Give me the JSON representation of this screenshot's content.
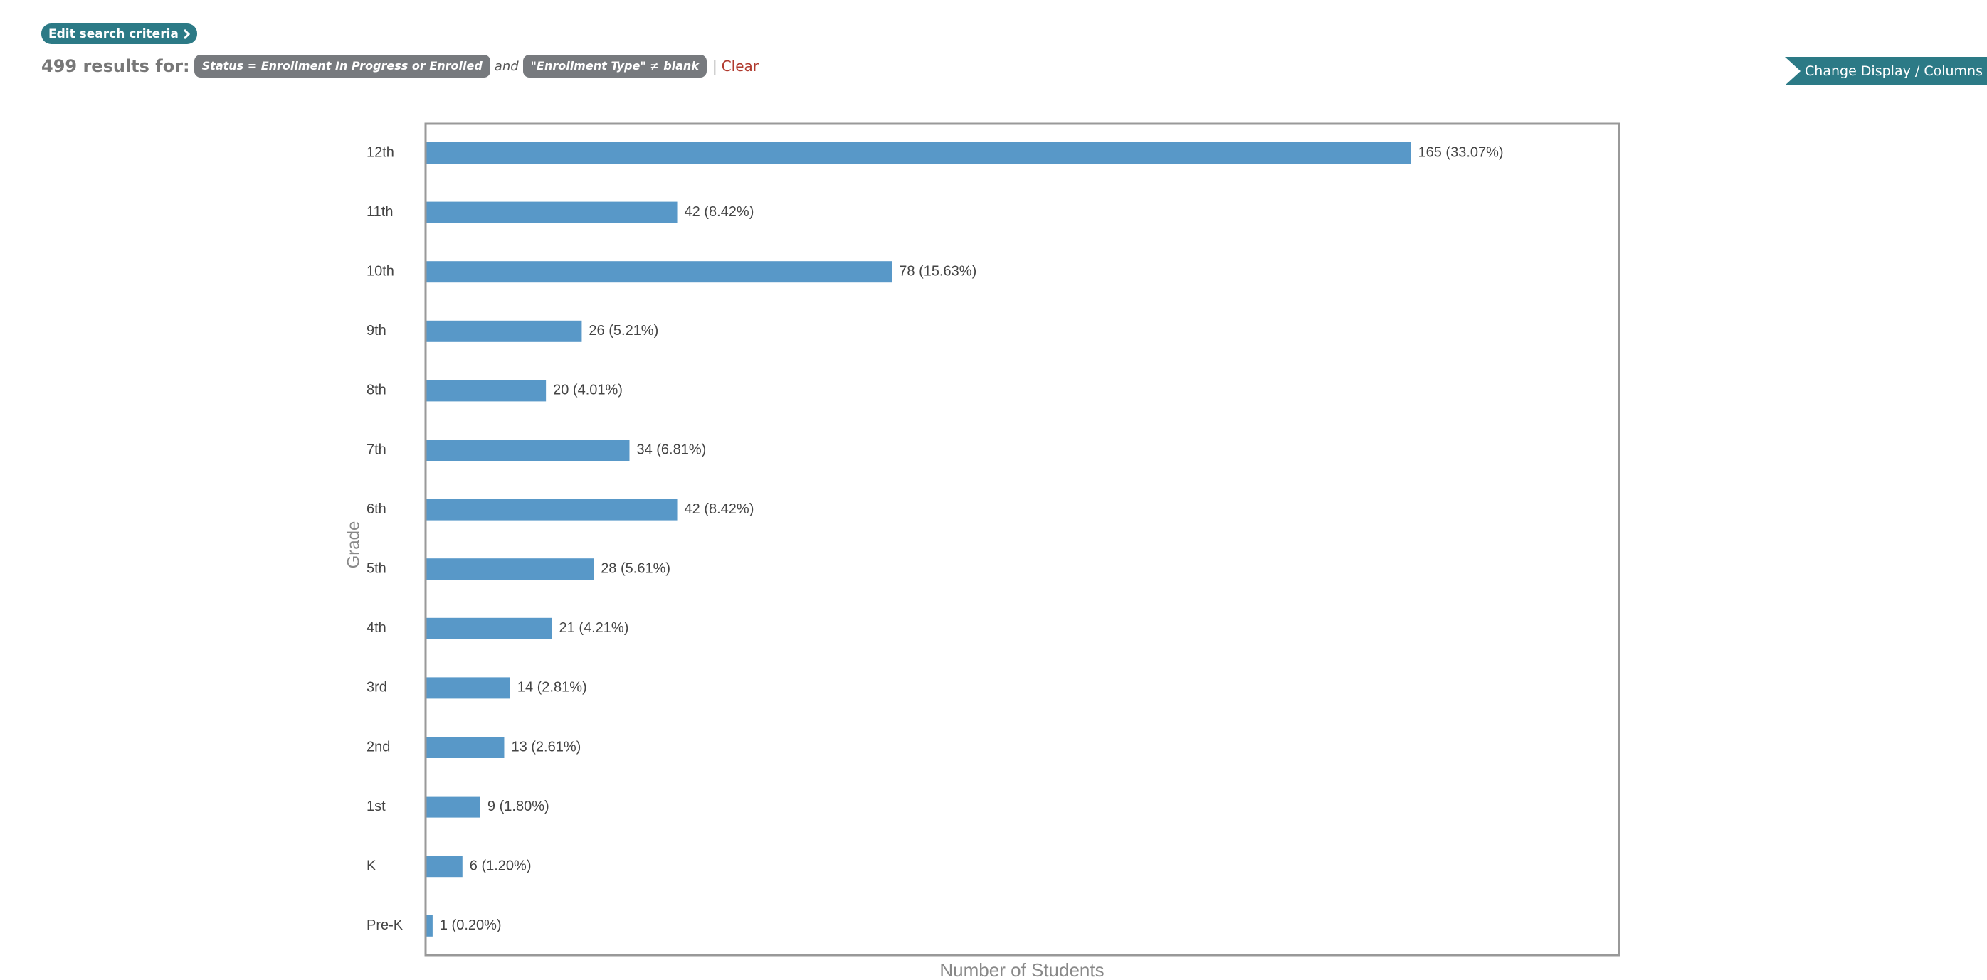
{
  "header": {
    "edit_label": "Edit search criteria",
    "results_count": "499 results for:",
    "filters": [
      "Status = Enrollment In Progress or Enrolled",
      "\"Enrollment Type\" ≠ blank"
    ],
    "joiner": "and",
    "separator": "|",
    "clear_label": "Clear"
  },
  "toolbar": {
    "change_display_label": "Change Display / Columns"
  },
  "colors": {
    "accent": "#2c7a86",
    "bar": "#5898c8",
    "tag": "#777a7e",
    "clear": "#b03a2e"
  },
  "chart_data": {
    "type": "bar",
    "orientation": "horizontal",
    "xlabel": "Number of Students",
    "ylabel": "Grade",
    "categories": [
      "12th",
      "11th",
      "10th",
      "9th",
      "8th",
      "7th",
      "6th",
      "5th",
      "4th",
      "3rd",
      "2nd",
      "1st",
      "K",
      "Pre-K"
    ],
    "values": [
      165,
      42,
      78,
      26,
      20,
      34,
      42,
      28,
      21,
      14,
      13,
      9,
      6,
      1
    ],
    "data_labels": [
      "165 (33.07%)",
      "42 (8.42%)",
      "78 (15.63%)",
      "26 (5.21%)",
      "20 (4.01%)",
      "34 (6.81%)",
      "42 (8.42%)",
      "28 (5.61%)",
      "21 (4.21%)",
      "14 (2.81%)",
      "13 (2.61%)",
      "9 (1.80%)",
      "6 (1.20%)",
      "1 (0.20%)"
    ],
    "xlim": [
      0,
      200
    ],
    "grid": false
  }
}
